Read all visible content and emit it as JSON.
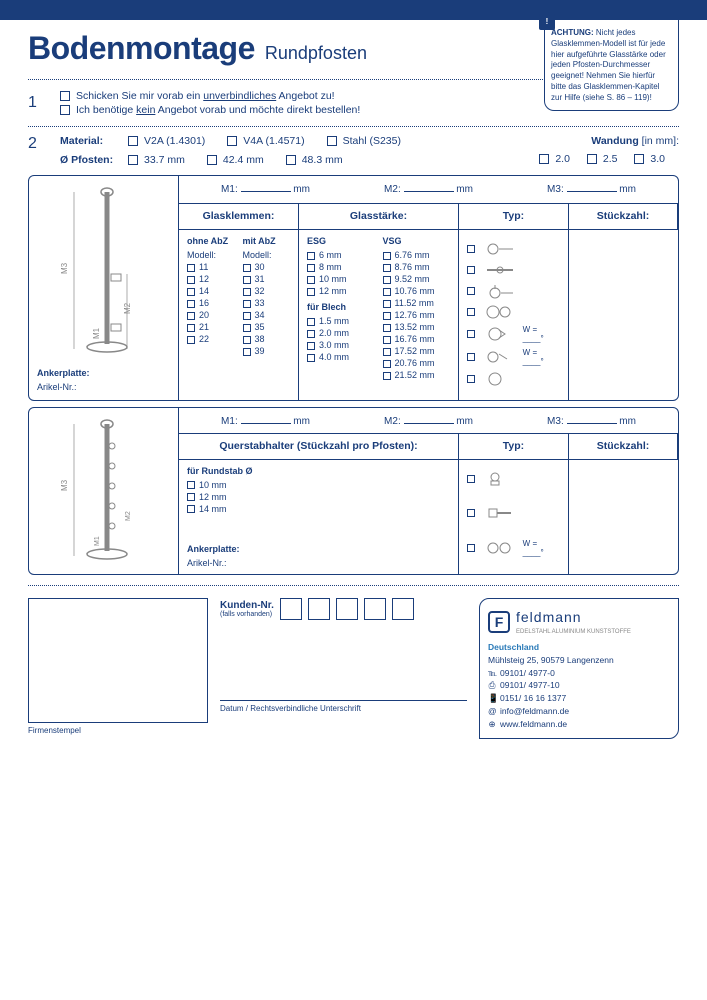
{
  "colors": {
    "primary": "#1a3d7a",
    "bg": "#ffffff"
  },
  "header": {
    "title": "Bodenmontage",
    "subtitle": "Rundpfosten"
  },
  "alert": {
    "heading": "ACHTUNG:",
    "text": "Nicht jedes Glasklemmen-Modell ist für jede hier aufgeführte Glasstärke oder jeden Pfosten-Durchmesser geeignet! Nehmen Sie hierfür bitte das Glasklemmen-Kapitel zur Hilfe (siehe S. 86 – 119)!"
  },
  "section1": {
    "opt1": {
      "pre": "Schicken Sie mir vorab ein ",
      "u": "unverbindliches",
      "post": " Angebot zu!"
    },
    "opt2": {
      "pre": "Ich benötige ",
      "u": "kein",
      "post": " Angebot vorab und möchte direkt bestellen!"
    }
  },
  "section2": {
    "material_lbl": "Material:",
    "materials": [
      "V2A (1.4301)",
      "V4A (1.4571)",
      "Stahl (S235)"
    ],
    "pfosten_lbl": "Ø Pfosten:",
    "pfosten": [
      "33.7 mm",
      "42.4 mm",
      "48.3 mm"
    ],
    "wandung_lbl": "Wandung",
    "wandung_unit": "[in mm]:",
    "wandungen": [
      "2.0",
      "2.5",
      "3.0"
    ]
  },
  "m_labels": {
    "m1": "M1:",
    "m2": "M2:",
    "m3": "M3:",
    "unit": "mm"
  },
  "table1": {
    "headers": [
      "Glasklemmen:",
      "Glasstärke:",
      "Typ:",
      "Stückzahl:"
    ],
    "glasklemmen": {
      "col1_hdr": "ohne AbZ",
      "col1_sub": "Modell:",
      "col1": [
        "11",
        "12",
        "14",
        "16",
        "20",
        "21",
        "22"
      ],
      "col2_hdr": "mit AbZ",
      "col2_sub": "Modell:",
      "col2": [
        "30",
        "31",
        "32",
        "33",
        "34",
        "35",
        "38",
        "39"
      ]
    },
    "glasstaerke": {
      "col1_hdr": "ESG",
      "col1": [
        "6 mm",
        "8 mm",
        "10 mm",
        "12 mm"
      ],
      "col1_hdr2": "für Blech",
      "col1b": [
        "1.5 mm",
        "2.0 mm",
        "3.0 mm",
        "4.0 mm"
      ],
      "col2_hdr": "VSG",
      "col2": [
        "6.76 mm",
        "8.76 mm",
        "9.52 mm",
        "10.76 mm",
        "11.52 mm",
        "12.76 mm",
        "13.52 mm",
        "16.76 mm",
        "17.52 mm",
        "20.76 mm",
        "21.52 mm"
      ]
    },
    "typ_w": "W = ____°",
    "anker_lbl": "Ankerplatte:",
    "artikel_lbl": "Arikel-Nr.:"
  },
  "table2": {
    "header": "Querstabhalter (Stückzahl pro Pfosten):",
    "typ_hdr": "Typ:",
    "stk_hdr": "Stückzahl:",
    "rundstab_lbl": "für Rundstab Ø",
    "rundstab": [
      "10 mm",
      "12 mm",
      "14 mm"
    ],
    "typ_w": "W = ____°"
  },
  "footer": {
    "kunden_lbl": "Kunden-Nr.",
    "kunden_sub": "(falls vorhanden)",
    "stamp_lbl": "Firmenstempel",
    "sig_lbl": "Datum / Rechtsverbindliche Unterschrift"
  },
  "company": {
    "name": "feldmann",
    "tagline": "EDELSTAHL ALUMINIUM KUNSTSTOFFE",
    "country": "Deutschland",
    "addr": "Mühlsteig 25, 90579 Langenzenn",
    "tel": "09101/ 4977-0",
    "fax": "09101/ 4977-10",
    "mob": "0151/ 16 16 1377",
    "mail": "info@feldmann.de",
    "web": "www.feldmann.de"
  }
}
